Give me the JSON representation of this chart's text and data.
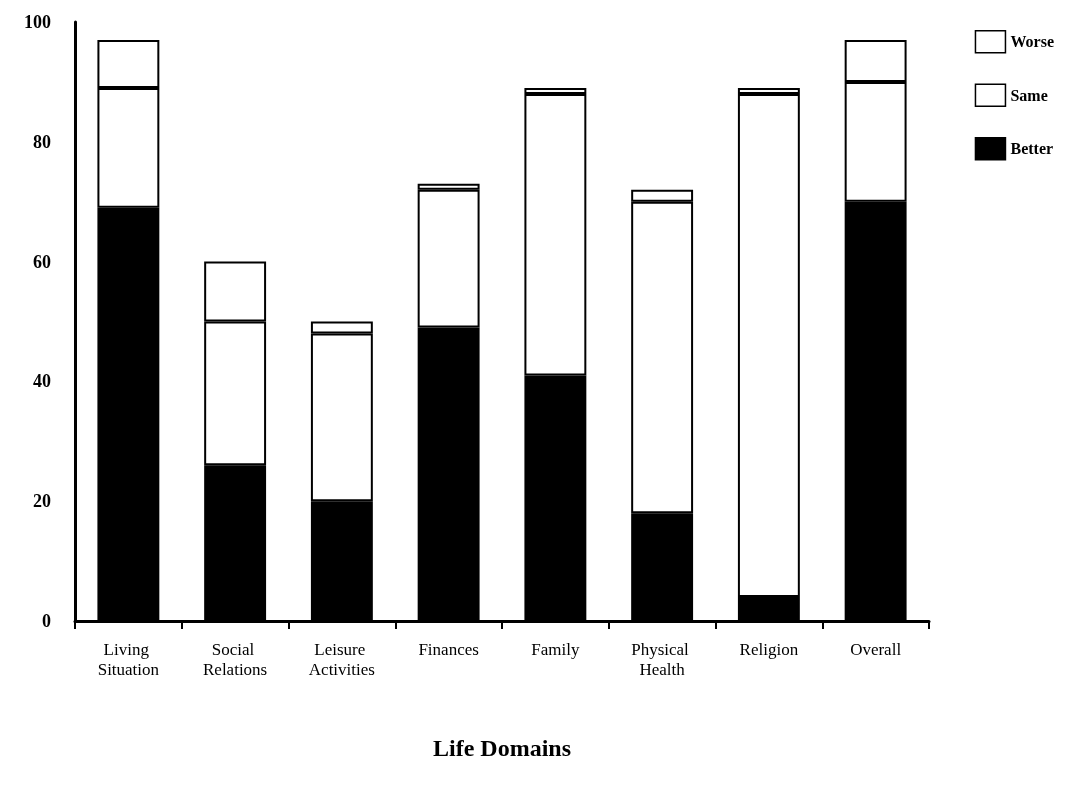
{
  "chart_data": {
    "type": "bar",
    "xlabel": "Life Domains",
    "categories": [
      "Living Situation",
      "Social Relations",
      "Leisure Activities",
      "Finances",
      "Family",
      "Physical Health",
      "Religion",
      "Overall"
    ],
    "series": [
      {
        "name": "Better",
        "color": "#000000",
        "values": [
          69,
          26,
          20,
          49,
          41,
          18,
          4,
          70
        ]
      },
      {
        "name": "Same",
        "color": "#ffffff",
        "values": [
          20,
          24,
          28,
          23,
          47,
          52,
          84,
          20
        ]
      },
      {
        "name": "Worse",
        "color": "#ffffff",
        "values": [
          8,
          10,
          2,
          1,
          1,
          2,
          1,
          7
        ]
      }
    ],
    "stacked": true,
    "ylim": [
      0,
      100
    ],
    "yticks": [
      0,
      20,
      40,
      60,
      80,
      100
    ],
    "grid": false,
    "legend": "top right"
  }
}
